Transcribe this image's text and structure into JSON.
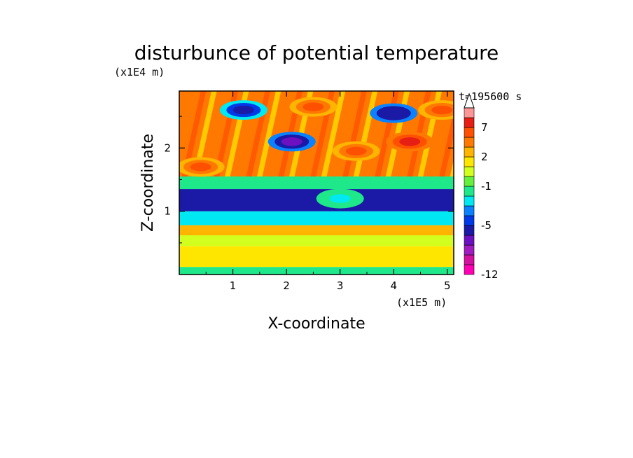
{
  "chart_data": {
    "type": "heatmap",
    "title": "disturbunce of potential temperature",
    "time_label": "t=195600 s",
    "xlabel": "X-coordinate",
    "ylabel": "Z-coordinate",
    "x_scale_label": "(x1E5 m)",
    "y_scale_label": "(x1E4 m)",
    "xlim": [
      0,
      5.12
    ],
    "ylim": [
      0,
      2.9
    ],
    "x_ticks": [
      1,
      2,
      3,
      4,
      5
    ],
    "x_tick_labels": [
      "1",
      "2",
      "3",
      "4",
      "5"
    ],
    "y_ticks": [
      1,
      2
    ],
    "y_tick_labels": [
      "1",
      "2"
    ],
    "colorbar": {
      "levels": [
        -12,
        -11,
        -10,
        -9,
        -7,
        -5,
        -4,
        -3,
        -2,
        -1,
        0,
        1,
        2,
        3,
        5,
        7,
        9,
        11
      ],
      "colors": [
        "#ff00b4",
        "#d2119f",
        "#a01cc0",
        "#6c11c2",
        "#1b1aa6",
        "#0039e6",
        "#0a82ff",
        "#00e9f2",
        "#1ee88a",
        "#64f03c",
        "#d2ff1e",
        "#ffe600",
        "#ffb400",
        "#ff7800",
        "#ff5000",
        "#e61e14",
        "#ff9696",
        "#ffc8c8"
      ],
      "tick_values": [
        -12,
        -5,
        -1,
        2,
        7
      ],
      "tick_labels": [
        "-12",
        "-5",
        "-1",
        "2",
        "7"
      ],
      "extend": "max"
    },
    "bands": [
      {
        "z_from": 0.0,
        "z_to": 0.12,
        "value": -1.5
      },
      {
        "z_from": 0.12,
        "z_to": 0.45,
        "value": 1.5
      },
      {
        "z_from": 0.45,
        "z_to": 0.62,
        "value": 0.5
      },
      {
        "z_from": 0.62,
        "z_to": 0.78,
        "value": 2.0
      },
      {
        "z_from": 0.78,
        "z_to": 1.0,
        "value": -2.5
      },
      {
        "z_from": 1.0,
        "z_to": 1.35,
        "value": -6.0
      },
      {
        "z_from": 1.35,
        "z_to": 1.55,
        "value": -1.5
      },
      {
        "z_from": 1.55,
        "z_to": 2.9,
        "value": 3.0
      }
    ],
    "features": [
      {
        "x": 1.2,
        "z": 2.6,
        "value": -6.0
      },
      {
        "x": 2.1,
        "z": 2.1,
        "value": -8.0
      },
      {
        "x": 4.0,
        "z": 2.55,
        "value": -7.0
      },
      {
        "x": 4.3,
        "z": 2.1,
        "value": 8.0
      },
      {
        "x": 3.3,
        "z": 1.95,
        "value": 5.0
      },
      {
        "x": 2.5,
        "z": 2.65,
        "value": 6.0
      },
      {
        "x": 0.4,
        "z": 1.7,
        "value": 6.0
      },
      {
        "x": 4.9,
        "z": 2.6,
        "value": 5.0
      },
      {
        "x": 3.0,
        "z": 1.2,
        "value": -2.5
      }
    ]
  }
}
